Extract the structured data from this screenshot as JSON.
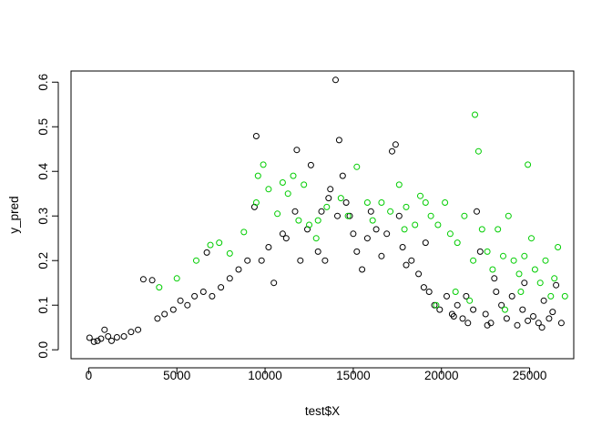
{
  "chart_data": {
    "type": "scatter",
    "title": "",
    "xlabel": "test$X",
    "ylabel": "y_pred",
    "xlim": [
      -1000,
      27500
    ],
    "ylim": [
      -0.02,
      0.625
    ],
    "x_ticks": [
      0,
      5000,
      10000,
      15000,
      20000,
      25000
    ],
    "x_tick_labels": [
      "0",
      "5000",
      "10000",
      "15000",
      "20000",
      "25000"
    ],
    "y_ticks": [
      0.0,
      0.1,
      0.2,
      0.3,
      0.4,
      0.5,
      0.6
    ],
    "y_tick_labels": [
      "0.0",
      "0.1",
      "0.2",
      "0.3",
      "0.4",
      "0.5",
      "0.6"
    ],
    "grid": false,
    "legend": "none",
    "marker": "open-circle",
    "series": [
      {
        "color": "#000000",
        "points": [
          [
            50,
            0.027
          ],
          [
            300,
            0.018
          ],
          [
            500,
            0.02
          ],
          [
            700,
            0.025
          ],
          [
            900,
            0.045
          ],
          [
            1100,
            0.03
          ],
          [
            1300,
            0.02
          ],
          [
            1600,
            0.028
          ],
          [
            2000,
            0.03
          ],
          [
            2400,
            0.04
          ],
          [
            2800,
            0.045
          ],
          [
            3100,
            0.158
          ],
          [
            3600,
            0.156
          ],
          [
            3900,
            0.07
          ],
          [
            4300,
            0.08
          ],
          [
            4800,
            0.09
          ],
          [
            5200,
            0.11
          ],
          [
            5600,
            0.1
          ],
          [
            6000,
            0.12
          ],
          [
            6500,
            0.13
          ],
          [
            6700,
            0.218
          ],
          [
            7000,
            0.12
          ],
          [
            7500,
            0.14
          ],
          [
            8000,
            0.16
          ],
          [
            8500,
            0.18
          ],
          [
            9000,
            0.2
          ],
          [
            9400,
            0.32
          ],
          [
            9500,
            0.479
          ],
          [
            9800,
            0.2
          ],
          [
            10200,
            0.23
          ],
          [
            10500,
            0.15
          ],
          [
            11000,
            0.26
          ],
          [
            11200,
            0.25
          ],
          [
            11700,
            0.31
          ],
          [
            11800,
            0.448
          ],
          [
            12000,
            0.2
          ],
          [
            12400,
            0.27
          ],
          [
            12600,
            0.414
          ],
          [
            13000,
            0.22
          ],
          [
            13200,
            0.31
          ],
          [
            13400,
            0.2
          ],
          [
            13600,
            0.34
          ],
          [
            13700,
            0.36
          ],
          [
            14000,
            0.605
          ],
          [
            14100,
            0.3
          ],
          [
            14200,
            0.47
          ],
          [
            14400,
            0.39
          ],
          [
            14600,
            0.33
          ],
          [
            14800,
            0.3
          ],
          [
            15000,
            0.26
          ],
          [
            15200,
            0.22
          ],
          [
            15500,
            0.18
          ],
          [
            15800,
            0.25
          ],
          [
            16000,
            0.31
          ],
          [
            16300,
            0.27
          ],
          [
            16600,
            0.21
          ],
          [
            16900,
            0.26
          ],
          [
            17200,
            0.445
          ],
          [
            17400,
            0.46
          ],
          [
            17600,
            0.3
          ],
          [
            17800,
            0.23
          ],
          [
            18000,
            0.19
          ],
          [
            18300,
            0.2
          ],
          [
            18700,
            0.17
          ],
          [
            19000,
            0.14
          ],
          [
            19300,
            0.13
          ],
          [
            19600,
            0.1
          ],
          [
            19900,
            0.09
          ],
          [
            20300,
            0.12
          ],
          [
            20600,
            0.08
          ],
          [
            20900,
            0.1
          ],
          [
            21200,
            0.07
          ],
          [
            21500,
            0.06
          ],
          [
            21800,
            0.09
          ],
          [
            22000,
            0.31
          ],
          [
            22200,
            0.22
          ],
          [
            22500,
            0.08
          ],
          [
            22800,
            0.06
          ],
          [
            23100,
            0.13
          ],
          [
            23400,
            0.1
          ],
          [
            23700,
            0.07
          ],
          [
            24000,
            0.12
          ],
          [
            24300,
            0.055
          ],
          [
            24600,
            0.09
          ],
          [
            24900,
            0.065
          ],
          [
            25200,
            0.075
          ],
          [
            25500,
            0.06
          ],
          [
            25800,
            0.11
          ],
          [
            26100,
            0.07
          ],
          [
            26500,
            0.145
          ],
          [
            26800,
            0.06
          ],
          [
            26300,
            0.085
          ],
          [
            25700,
            0.05
          ],
          [
            23000,
            0.16
          ],
          [
            19100,
            0.24
          ],
          [
            20700,
            0.075
          ],
          [
            21400,
            0.12
          ],
          [
            22600,
            0.055
          ],
          [
            24700,
            0.15
          ]
        ]
      },
      {
        "color": "#00cd00",
        "points": [
          [
            8000,
            0.216
          ],
          [
            8800,
            0.264
          ],
          [
            9500,
            0.33
          ],
          [
            9600,
            0.39
          ],
          [
            9900,
            0.415
          ],
          [
            10200,
            0.36
          ],
          [
            10700,
            0.305
          ],
          [
            11000,
            0.375
          ],
          [
            11300,
            0.35
          ],
          [
            11600,
            0.39
          ],
          [
            12200,
            0.37
          ],
          [
            12500,
            0.28
          ],
          [
            13000,
            0.29
          ],
          [
            13500,
            0.32
          ],
          [
            14300,
            0.34
          ],
          [
            14700,
            0.3
          ],
          [
            15200,
            0.41
          ],
          [
            16100,
            0.29
          ],
          [
            16600,
            0.33
          ],
          [
            17100,
            0.31
          ],
          [
            17600,
            0.37
          ],
          [
            18000,
            0.32
          ],
          [
            18500,
            0.28
          ],
          [
            18800,
            0.345
          ],
          [
            19100,
            0.33
          ],
          [
            19400,
            0.3
          ],
          [
            19800,
            0.28
          ],
          [
            20200,
            0.33
          ],
          [
            20500,
            0.26
          ],
          [
            20900,
            0.24
          ],
          [
            21300,
            0.3
          ],
          [
            21800,
            0.2
          ],
          [
            21900,
            0.527
          ],
          [
            22100,
            0.445
          ],
          [
            22300,
            0.27
          ],
          [
            22600,
            0.22
          ],
          [
            22900,
            0.18
          ],
          [
            23200,
            0.27
          ],
          [
            23500,
            0.21
          ],
          [
            23800,
            0.3
          ],
          [
            24100,
            0.2
          ],
          [
            24400,
            0.17
          ],
          [
            24700,
            0.21
          ],
          [
            24900,
            0.415
          ],
          [
            25100,
            0.25
          ],
          [
            25300,
            0.18
          ],
          [
            25600,
            0.15
          ],
          [
            25900,
            0.2
          ],
          [
            26200,
            0.12
          ],
          [
            26600,
            0.23
          ],
          [
            27000,
            0.12
          ],
          [
            19700,
            0.1
          ],
          [
            20800,
            0.13
          ],
          [
            21600,
            0.11
          ],
          [
            23600,
            0.09
          ],
          [
            24500,
            0.13
          ],
          [
            26400,
            0.16
          ],
          [
            4000,
            0.14
          ],
          [
            5000,
            0.16
          ],
          [
            6100,
            0.2
          ],
          [
            6900,
            0.235
          ],
          [
            7400,
            0.24
          ],
          [
            15800,
            0.33
          ],
          [
            17900,
            0.27
          ],
          [
            12900,
            0.25
          ],
          [
            11900,
            0.29
          ]
        ]
      }
    ]
  }
}
